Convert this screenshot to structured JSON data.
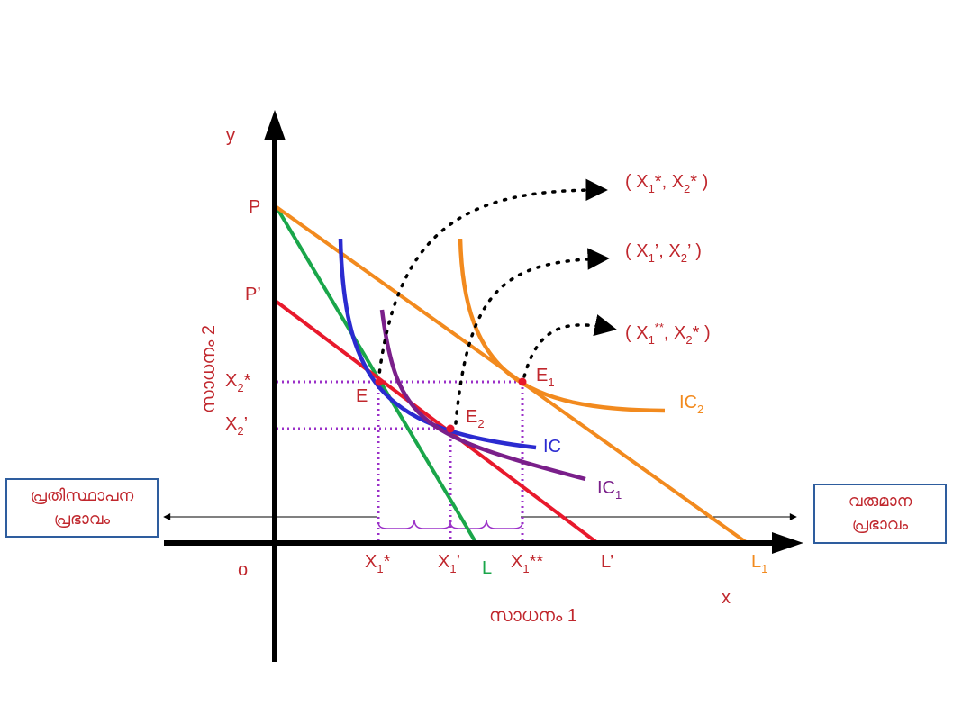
{
  "axes": {
    "y_label": "y",
    "x_label": "x",
    "origin": "o",
    "y_title": "സാധനം 2",
    "x_title": "സാധനം 1"
  },
  "intercepts_y": {
    "p": "P",
    "p_prime": "P’"
  },
  "y_ticks": {
    "x2_star": {
      "base": "X",
      "sub": "2",
      "tail": "*"
    },
    "x2_prime": {
      "base": "X",
      "sub": "2",
      "tail": "’"
    }
  },
  "x_ticks": {
    "x1_star": {
      "base": "X",
      "sub": "1",
      "tail": "*"
    },
    "x1_prime": {
      "base": "X",
      "sub": "1",
      "tail": "’"
    },
    "x1_dstar": {
      "base": "X",
      "sub": "1",
      "tail": "**"
    }
  },
  "budget_lines": {
    "l": "L",
    "l_prime": "L’",
    "l1": {
      "base": "L",
      "sub": "1"
    }
  },
  "curves": {
    "ic": "IC",
    "ic1": {
      "base": "IC",
      "sub": "1"
    },
    "ic2": {
      "base": "IC",
      "sub": "2"
    }
  },
  "points": {
    "e": "E",
    "e1": {
      "base": "E",
      "sub": "1"
    },
    "e2": {
      "base": "E",
      "sub": "2"
    }
  },
  "bundles": {
    "b1": {
      "open": "( X",
      "s1": "1",
      "mid": "*, X",
      "s2": "2",
      "close": "* )"
    },
    "b2": {
      "open": "( X",
      "s1": "1",
      "mid": "’, X",
      "s2": "2",
      "close": "’ )"
    },
    "b3": {
      "open": "( X",
      "s1": "1",
      "sup": "**",
      "mid": ", X",
      "s2": "2",
      "close": "* )"
    }
  },
  "substitution_box": {
    "line1": "പ്രതിസ്ഥാപന",
    "line2": "പ്രഭാവം"
  },
  "income_box": {
    "line1": "വരുമാന",
    "line2": "പ്രഭാവം"
  },
  "colors": {
    "axis": "#000000",
    "label_red": "#c0272d",
    "line_orange": "#f28a1e",
    "line_green": "#1aa64a",
    "line_red": "#e8192c",
    "ic_blue": "#2b2bd0",
    "ic_purple": "#7a1f8a",
    "guide_purple": "#9b30c8",
    "box_border": "#2e5d9e"
  }
}
